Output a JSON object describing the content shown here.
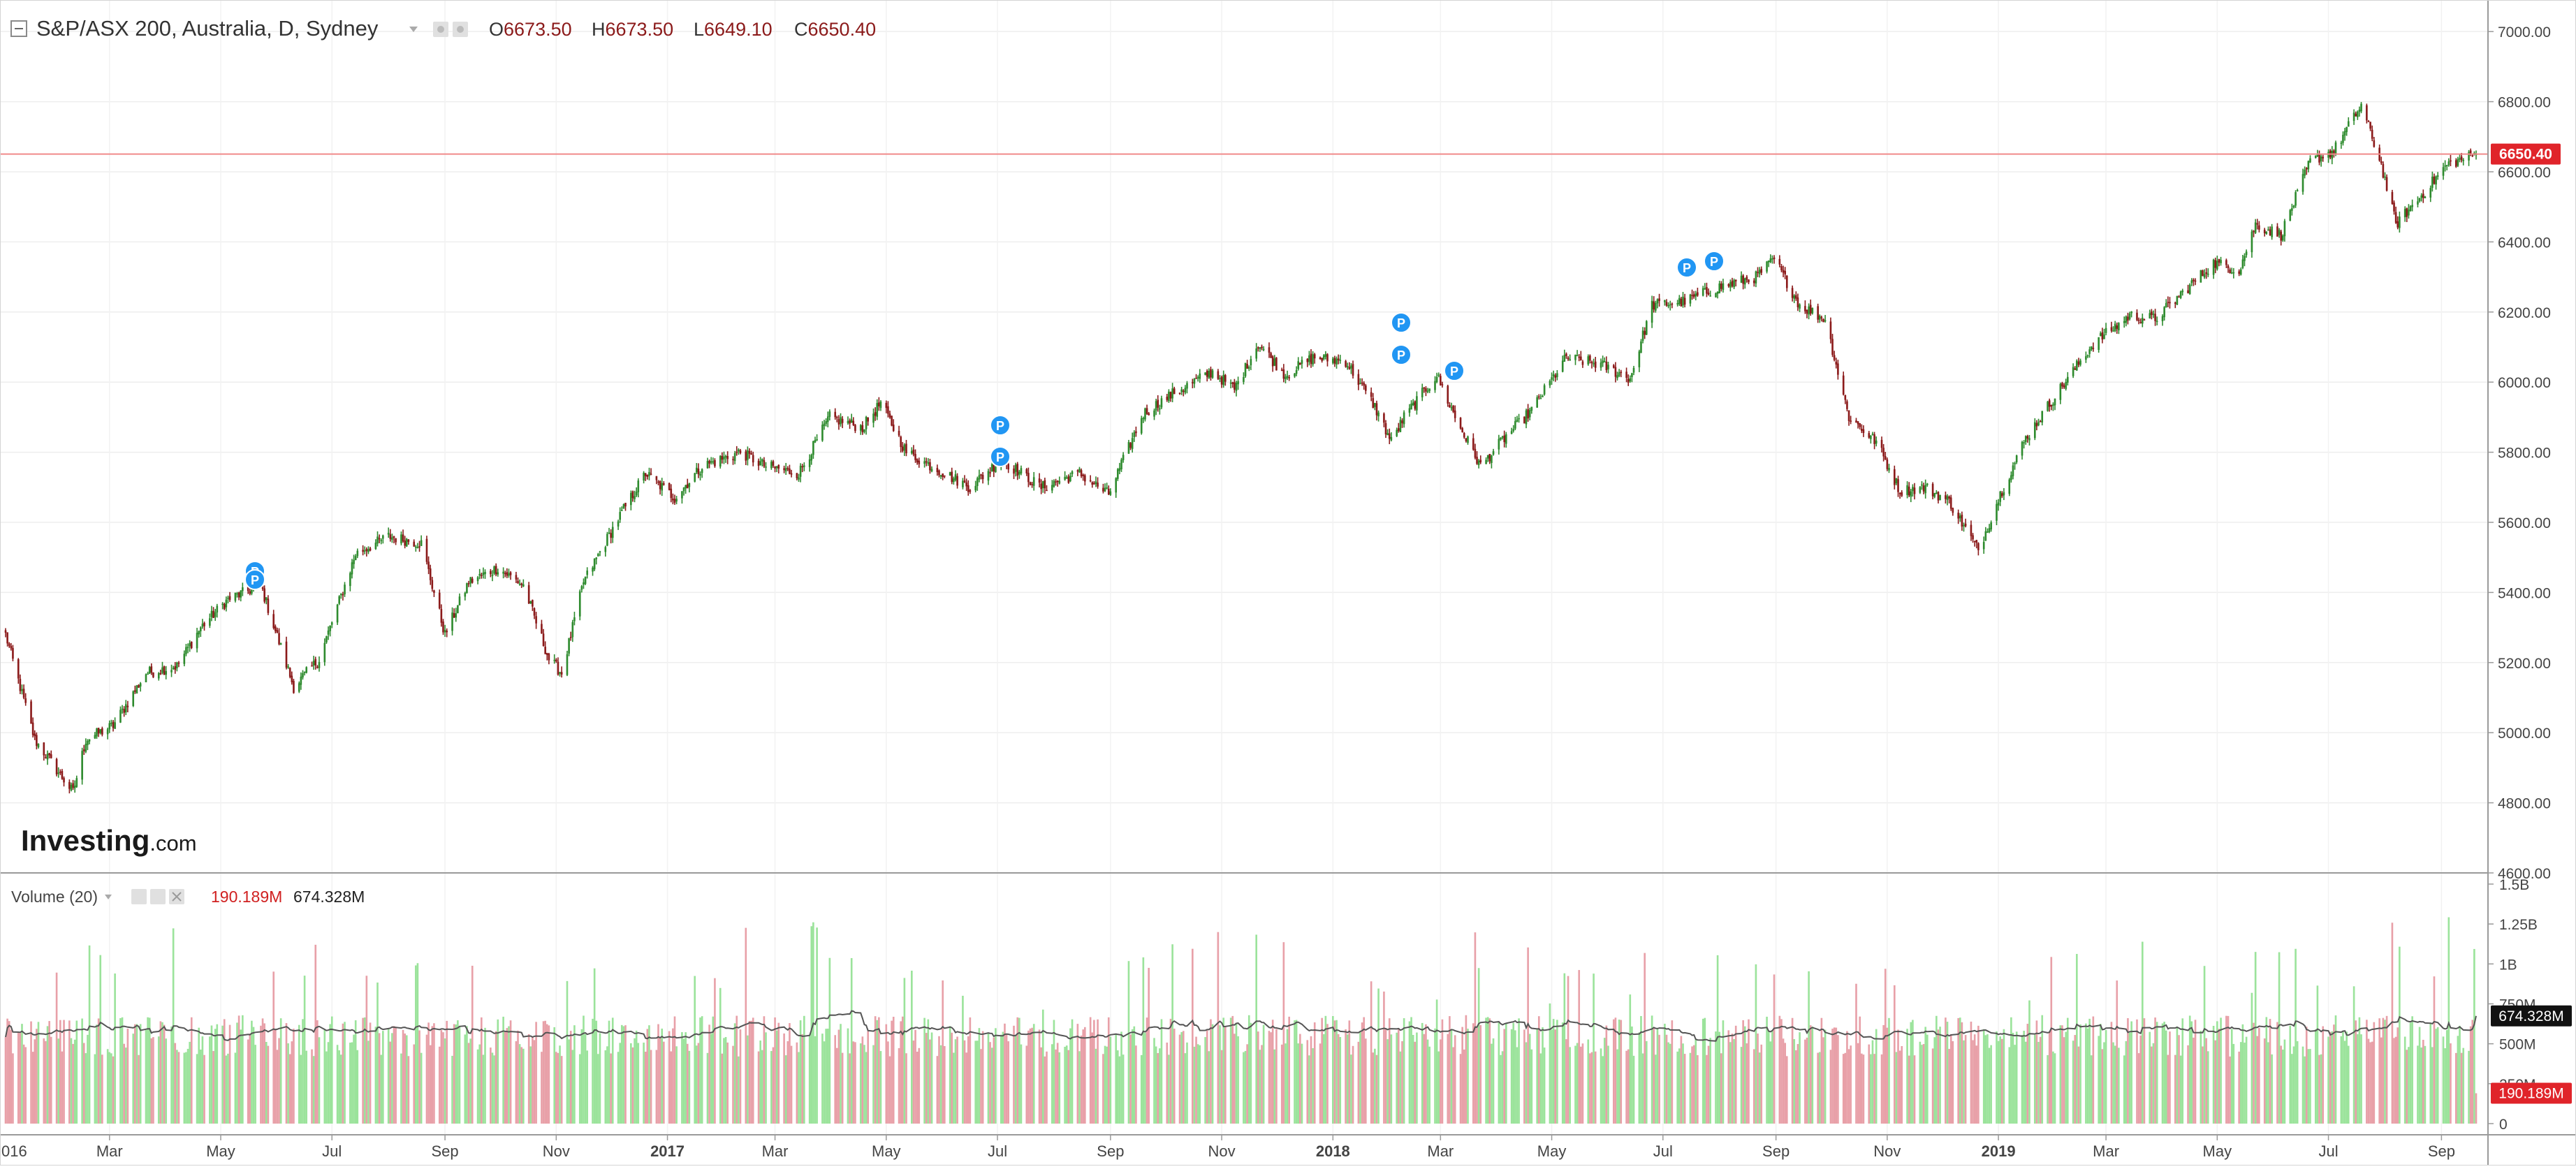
{
  "header": {
    "title": "S&P/ASX 200, Australia, D, Sydney",
    "ohlc": [
      {
        "label": "O",
        "value": "6673.50"
      },
      {
        "label": "H",
        "value": "6673.50"
      },
      {
        "label": "L",
        "value": "6649.10"
      },
      {
        "label": "C",
        "value": "6650.40"
      }
    ],
    "last_price": "6650.40"
  },
  "volume_header": {
    "title": "Volume (20)",
    "volume_value": "190.189M",
    "ma_value": "674.328M"
  },
  "logo": {
    "main": "Investing",
    "suffix": ".com"
  },
  "colors": {
    "up": "#2e8b2e",
    "down": "#8b1a1a",
    "vol_up": "#9be39b",
    "vol_down": "#e8a0a8",
    "price_line": "#f08a8a",
    "price_tag": "#e0242a",
    "marker": "#2196f3",
    "ma_line": "#555555"
  },
  "chart_data": [
    {
      "type": "candlestick",
      "title": "S&P/ASX 200, Australia, D, Sydney",
      "x_tick_labels": [
        "016",
        "Mar",
        "May",
        "Jul",
        "Sep",
        "Nov",
        "2017",
        "Mar",
        "May",
        "Jul",
        "Sep",
        "Nov",
        "2018",
        "Mar",
        "May",
        "Jul",
        "Sep",
        "Nov",
        "2019",
        "Mar",
        "May",
        "Jul",
        "Sep"
      ],
      "y_ticks": [
        4600,
        4800,
        5000,
        5200,
        5400,
        5600,
        5800,
        6000,
        6200,
        6400,
        6600,
        6800,
        7000
      ],
      "y_tick_labels": [
        "4600.00",
        "4800.00",
        "5000.00",
        "5200.00",
        "5400.00",
        "5600.00",
        "5800.00",
        "6000.00",
        "6200.00",
        "6400.00",
        "6600.00",
        "6800.00",
        "7000.00"
      ],
      "ylim": [
        4600,
        7090
      ],
      "xlim": [
        "2016-01-04",
        "2019-09-20"
      ],
      "grid": true,
      "series": [
        {
          "x": [
            "2016-01-04",
            "2016-01-20",
            "2016-02-10",
            "2016-02-17",
            "2016-03-03",
            "2016-03-21",
            "2016-04-07",
            "2016-04-20",
            "2016-05-05",
            "2016-05-23",
            "2016-06-10",
            "2016-06-24",
            "2016-07-14",
            "2016-08-01",
            "2016-08-19",
            "2016-09-01",
            "2016-09-14",
            "2016-09-30",
            "2016-10-14",
            "2016-10-28",
            "2016-11-04",
            "2016-11-16",
            "2016-12-05",
            "2016-12-20",
            "2017-01-05",
            "2017-01-20",
            "2017-02-10",
            "2017-02-24",
            "2017-03-14",
            "2017-03-31",
            "2017-04-18",
            "2017-04-28",
            "2017-05-12",
            "2017-05-26",
            "2017-06-16",
            "2017-07-03",
            "2017-07-25",
            "2017-08-15",
            "2017-08-31",
            "2017-09-19",
            "2017-10-06",
            "2017-10-27",
            "2017-11-08",
            "2017-11-21",
            "2017-12-06",
            "2017-12-21",
            "2018-01-08",
            "2018-01-24",
            "2018-02-02",
            "2018-02-09",
            "2018-02-27",
            "2018-03-09",
            "2018-03-23",
            "2018-04-05",
            "2018-04-20",
            "2018-05-09",
            "2018-05-28",
            "2018-06-13",
            "2018-06-25",
            "2018-07-13",
            "2018-07-31",
            "2018-08-21",
            "2018-08-31",
            "2018-09-14",
            "2018-09-28",
            "2018-10-11",
            "2018-10-26",
            "2018-11-08",
            "2018-11-22",
            "2018-12-05",
            "2018-12-21",
            "2019-01-02",
            "2019-01-16",
            "2019-02-01",
            "2019-02-22",
            "2019-03-14",
            "2019-03-28",
            "2019-04-11",
            "2019-04-29",
            "2019-05-13",
            "2019-05-22",
            "2019-06-05",
            "2019-06-21",
            "2019-07-04",
            "2019-07-19",
            "2019-07-30",
            "2019-08-07",
            "2019-08-19",
            "2019-09-04",
            "2019-09-20"
          ],
          "close": [
            5280,
            4980,
            4830,
            4980,
            5020,
            5170,
            5190,
            5300,
            5380,
            5420,
            5130,
            5210,
            5510,
            5560,
            5540,
            5280,
            5430,
            5470,
            5420,
            5210,
            5170,
            5430,
            5610,
            5740,
            5670,
            5760,
            5800,
            5760,
            5740,
            5900,
            5870,
            5940,
            5800,
            5760,
            5700,
            5780,
            5700,
            5740,
            5680,
            5910,
            5970,
            6030,
            5980,
            6110,
            6020,
            6070,
            6060,
            5930,
            5830,
            5900,
            6020,
            5900,
            5760,
            5840,
            5920,
            6070,
            6050,
            6010,
            6220,
            6230,
            6270,
            6300,
            6350,
            6220,
            6180,
            5900,
            5830,
            5690,
            5700,
            5660,
            5520,
            5680,
            5840,
            5960,
            6110,
            6190,
            6180,
            6250,
            6340,
            6320,
            6450,
            6420,
            6630,
            6660,
            6790,
            6620,
            6450,
            6520,
            6620,
            6650
          ]
        }
      ]
    },
    {
      "type": "bar",
      "title": "Volume (20)",
      "y_tick_labels": [
        "0",
        "250M",
        "500M",
        "750M",
        "1B",
        "1.25B",
        "1.5B"
      ],
      "ylim": [
        0,
        1500
      ],
      "units": "M",
      "series": [
        {
          "name": "Volume",
          "last": 190.189
        },
        {
          "name": "MA(20)",
          "last": 674.328
        }
      ]
    }
  ]
}
